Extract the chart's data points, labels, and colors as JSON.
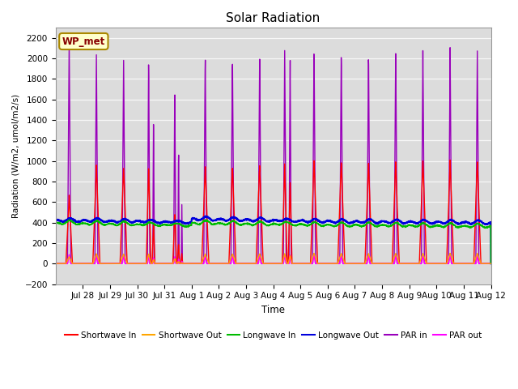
{
  "title": "Solar Radiation",
  "xlabel": "Time",
  "ylabel": "Radiation (W/m2, umol/m2/s)",
  "ylim": [
    -200,
    2300
  ],
  "yticks": [
    -200,
    0,
    200,
    400,
    600,
    800,
    1000,
    1200,
    1400,
    1600,
    1800,
    2000,
    2200
  ],
  "bg_color": "#dcdcdc",
  "fig_bg": "#ffffff",
  "annotation_text": "WP_met",
  "annotation_bg": "#ffffcc",
  "annotation_border": "#aa8800",
  "lines": {
    "shortwave_in": {
      "color": "#ff0000",
      "label": "Shortwave In",
      "lw": 1.0
    },
    "shortwave_out": {
      "color": "#ffa500",
      "label": "Shortwave Out",
      "lw": 1.0
    },
    "longwave_in": {
      "color": "#00bb00",
      "label": "Longwave In",
      "lw": 1.2
    },
    "longwave_out": {
      "color": "#0000dd",
      "label": "Longwave Out",
      "lw": 1.5
    },
    "par_in": {
      "color": "#9900bb",
      "label": "PAR in",
      "lw": 1.0
    },
    "par_out": {
      "color": "#ff00ff",
      "label": "PAR out",
      "lw": 1.2
    }
  },
  "n_days": 16,
  "points_per_hour": 6,
  "x_tick_labels": [
    "Jul 28",
    "Jul 29",
    "Jul 30",
    "Jul 31",
    "Aug 1",
    "Aug 2",
    "Aug 3",
    "Aug 4",
    "Aug 5",
    "Aug 6",
    "Aug 7",
    "Aug 8",
    "Aug 9",
    "Aug 10",
    "Aug 11",
    "Aug 12"
  ]
}
